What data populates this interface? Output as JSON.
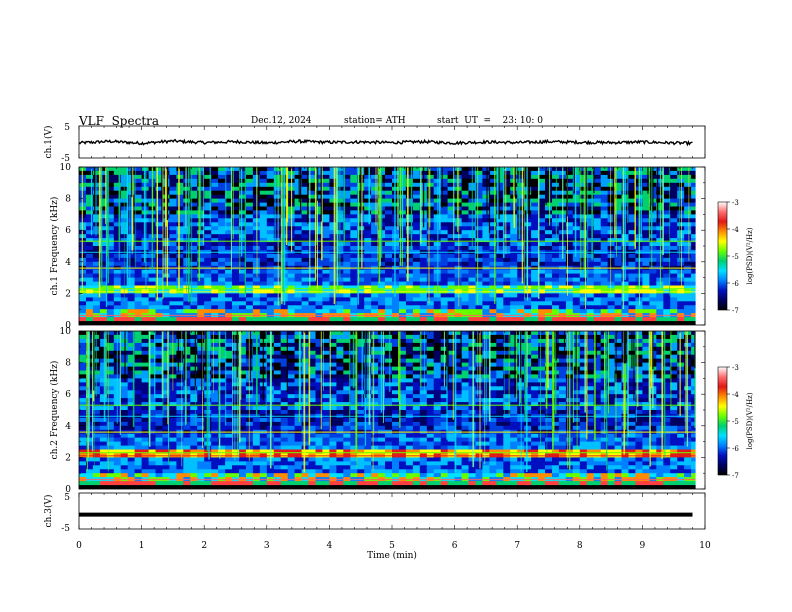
{
  "header": {
    "title": "VLF  Spectra",
    "date": "Dec.12, 2024",
    "station": "station= ATH",
    "start_ut": "start  UT  =    23: 10: 0"
  },
  "colorbar": {
    "label": "log(PSD)(V²/Hz)",
    "ticks": [
      "-3",
      "-4",
      "-5",
      "-6",
      "-7"
    ],
    "colors": [
      "#ffffff",
      "#ff6f6f",
      "#e01818",
      "#ff8c00",
      "#ffff00",
      "#66ff00",
      "#00d070",
      "#00e0ff",
      "#0080ff",
      "#0010c0",
      "#000060",
      "#000000"
    ]
  },
  "chart_data": [
    {
      "type": "line",
      "ylabel": "ch.1(V)",
      "ylim": [
        -5,
        5
      ],
      "ytick_labels": [
        "5",
        "-5"
      ],
      "x": [
        0,
        0.5,
        1,
        1.5,
        2,
        2.5,
        3,
        3.5,
        4,
        4.5,
        5,
        5.5,
        6,
        6.5,
        7,
        7.5,
        8,
        8.5,
        9,
        9.5,
        9.8
      ],
      "y": [
        -0.3,
        0.2,
        -0.4,
        0.3,
        -0.2,
        0.1,
        -0.3,
        0.2,
        -0.1,
        0.0,
        -0.2,
        0.1,
        -0.3,
        0.0,
        -0.2,
        0.1,
        -0.1,
        -0.2,
        0.0,
        -0.3,
        -0.4
      ]
    },
    {
      "type": "heatmap",
      "ylabel": "ch.1  Frequency  (kHz)",
      "xlim": [
        0,
        10
      ],
      "ylim": [
        0,
        10
      ],
      "ytick_labels": [
        "0",
        "2",
        "4",
        "6",
        "8",
        "10"
      ],
      "colorbar_range": [
        -7,
        -3
      ]
    },
    {
      "type": "heatmap",
      "ylabel": "ch.2  Frequency  (kHz)",
      "xlim": [
        0,
        10
      ],
      "ylim": [
        0,
        10
      ],
      "ytick_labels": [
        "0",
        "2",
        "4",
        "6",
        "8",
        "10"
      ],
      "colorbar_range": [
        -7,
        -3
      ]
    },
    {
      "type": "line",
      "ylabel": "ch.3(V)",
      "xlabel": "Time  (min)",
      "xlim": [
        0,
        10
      ],
      "ylim": [
        -5,
        5
      ],
      "ytick_labels": [
        "5",
        "-5"
      ],
      "xtick_labels": [
        "0",
        "1",
        "2",
        "3",
        "4",
        "5",
        "6",
        "7",
        "8",
        "9",
        "10"
      ],
      "x": [
        0,
        9.8
      ],
      "y": [
        -1,
        -1
      ]
    }
  ]
}
